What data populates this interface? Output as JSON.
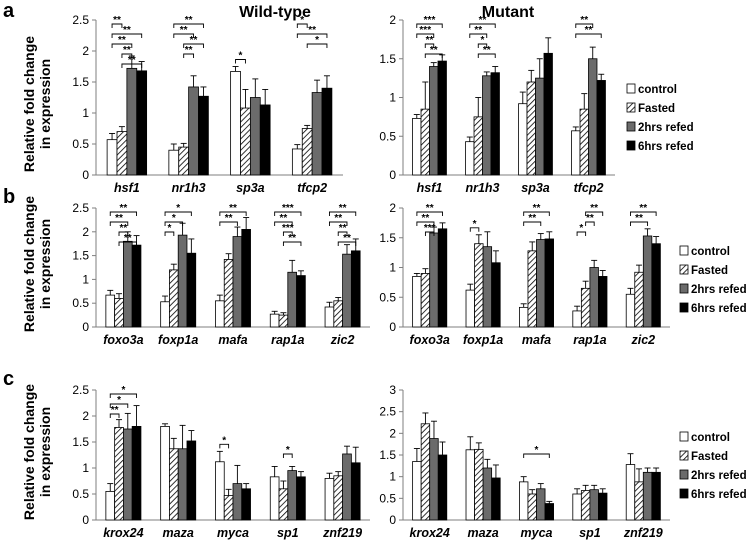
{
  "panel_titles": [
    "Wild-type",
    "Mutant"
  ],
  "row_labels": [
    "a",
    "b",
    "c"
  ],
  "ylabel_line1": "Relative fold change",
  "ylabel_line2": "in expression",
  "legend": [
    "control",
    "Fasted",
    "2hrs refed",
    "6hrs refed"
  ],
  "colors": {
    "control": "#ffffff",
    "fasted": "hatch",
    "refed2": "#6b6b6b",
    "refed6": "#000000",
    "axis": "#7f7f7f"
  },
  "chart_data": [
    {
      "id": "a-wt",
      "type": "bar",
      "title": "Wild-type",
      "ylim": [
        0,
        2.5
      ],
      "yticks": [
        "0",
        "0.5",
        "1",
        "1.5",
        "2",
        "2.5"
      ],
      "categories": [
        "hsf1",
        "nr1h3",
        "sp3a",
        "tfcp2"
      ],
      "series": [
        {
          "name": "control",
          "values": [
            0.57,
            0.4,
            1.67,
            0.42
          ],
          "errors": [
            0.1,
            0.1,
            0.08,
            0.07
          ]
        },
        {
          "name": "Fasted",
          "values": [
            0.7,
            0.45,
            1.08,
            0.75
          ],
          "errors": [
            0.08,
            0.06,
            0.3,
            0.05
          ]
        },
        {
          "name": "2hrs refed",
          "values": [
            1.72,
            1.42,
            1.25,
            1.33
          ],
          "errors": [
            0.2,
            0.18,
            0.3,
            0.2
          ]
        },
        {
          "name": "6hrs refed",
          "values": [
            1.68,
            1.27,
            1.13,
            1.4
          ],
          "errors": [
            0.15,
            0.15,
            0.25,
            0.2
          ]
        }
      ],
      "annotations": [
        {
          "cat": 0,
          "from": 0,
          "to": 1,
          "label": "**"
        },
        {
          "cat": 0,
          "from": 0,
          "to": 3,
          "label": "**"
        },
        {
          "cat": 0,
          "from": 0,
          "to": 2,
          "label": "**"
        },
        {
          "cat": 0,
          "from": 1,
          "to": 2,
          "label": "**"
        },
        {
          "cat": 0,
          "from": 1,
          "to": 3,
          "label": "**"
        },
        {
          "cat": 1,
          "from": 0,
          "to": 3,
          "label": "**"
        },
        {
          "cat": 1,
          "from": 0,
          "to": 2,
          "label": "**"
        },
        {
          "cat": 1,
          "from": 1,
          "to": 3,
          "label": "**"
        },
        {
          "cat": 1,
          "from": 1,
          "to": 2,
          "label": "**"
        },
        {
          "cat": 2,
          "from": 0,
          "to": 1,
          "label": "*"
        },
        {
          "cat": 3,
          "from": 0,
          "to": 1,
          "label": "*"
        },
        {
          "cat": 3,
          "from": 0,
          "to": 3,
          "label": "**"
        },
        {
          "cat": 3,
          "from": 1,
          "to": 3,
          "label": "*"
        }
      ]
    },
    {
      "id": "a-mut",
      "type": "bar",
      "title": "Mutant",
      "ylim": [
        0,
        2
      ],
      "yticks": [
        "0",
        "0.5",
        "1",
        "1.5",
        "2"
      ],
      "categories": [
        "hsf1",
        "nr1h3",
        "sp3a",
        "tfcp2"
      ],
      "series": [
        {
          "name": "control",
          "values": [
            0.73,
            0.43,
            0.92,
            0.57
          ],
          "errors": [
            0.05,
            0.06,
            0.15,
            0.05
          ]
        },
        {
          "name": "Fasted",
          "values": [
            0.85,
            0.75,
            1.2,
            0.85
          ],
          "errors": [
            0.35,
            0.25,
            0.15,
            0.2
          ]
        },
        {
          "name": "2hrs refed",
          "values": [
            1.4,
            1.28,
            1.25,
            1.5
          ],
          "errors": [
            0.05,
            0.05,
            0.25,
            0.15
          ]
        },
        {
          "name": "6hrs refed",
          "values": [
            1.47,
            1.32,
            1.57,
            1.22
          ],
          "errors": [
            0.08,
            0.08,
            0.2,
            0.08
          ]
        }
      ],
      "annotations": [
        {
          "cat": 0,
          "from": 0,
          "to": 3,
          "label": "***"
        },
        {
          "cat": 0,
          "from": 0,
          "to": 2,
          "label": "***"
        },
        {
          "cat": 0,
          "from": 1,
          "to": 2,
          "label": "**"
        },
        {
          "cat": 0,
          "from": 1,
          "to": 3,
          "label": "**"
        },
        {
          "cat": 1,
          "from": 0,
          "to": 3,
          "label": "**"
        },
        {
          "cat": 1,
          "from": 0,
          "to": 2,
          "label": "**"
        },
        {
          "cat": 1,
          "from": 1,
          "to": 2,
          "label": "*"
        },
        {
          "cat": 1,
          "from": 1,
          "to": 3,
          "label": "**"
        },
        {
          "cat": 3,
          "from": 0,
          "to": 2,
          "label": "**"
        },
        {
          "cat": 3,
          "from": 0,
          "to": 3,
          "label": "**"
        }
      ]
    },
    {
      "id": "b-wt",
      "type": "bar",
      "ylim": [
        0,
        2.5
      ],
      "yticks": [
        "0",
        "0.5",
        "1",
        "1.5",
        "2",
        "2.5"
      ],
      "categories": [
        "foxo3a",
        "foxp1a",
        "mafa",
        "rap1a",
        "zic2"
      ],
      "series": [
        {
          "name": "control",
          "values": [
            0.67,
            0.53,
            0.55,
            0.27,
            0.42
          ],
          "errors": [
            0.1,
            0.12,
            0.12,
            0.06,
            0.1
          ]
        },
        {
          "name": "Fasted",
          "values": [
            0.6,
            1.2,
            1.42,
            0.25,
            0.55
          ],
          "errors": [
            0.1,
            0.12,
            0.12,
            0.05,
            0.07
          ]
        },
        {
          "name": "2hrs refed",
          "values": [
            1.8,
            1.93,
            1.9,
            1.15,
            1.53
          ],
          "errors": [
            0.2,
            0.25,
            0.2,
            0.25,
            0.2
          ]
        },
        {
          "name": "6hrs refed",
          "values": [
            1.72,
            1.55,
            2.05,
            1.08,
            1.6
          ],
          "errors": [
            0.2,
            0.3,
            0.25,
            0.1,
            0.25
          ]
        }
      ],
      "annotations": [
        {
          "cat": 0,
          "from": 0,
          "to": 3,
          "label": "**"
        },
        {
          "cat": 0,
          "from": 0,
          "to": 2,
          "label": "**"
        },
        {
          "cat": 0,
          "from": 1,
          "to": 2,
          "label": "**"
        },
        {
          "cat": 0,
          "from": 1,
          "to": 3,
          "label": "**"
        },
        {
          "cat": 1,
          "from": 0,
          "to": 3,
          "label": "*"
        },
        {
          "cat": 1,
          "from": 0,
          "to": 2,
          "label": "*"
        },
        {
          "cat": 1,
          "from": 0,
          "to": 1,
          "label": "*"
        },
        {
          "cat": 2,
          "from": 0,
          "to": 3,
          "label": "**"
        },
        {
          "cat": 2,
          "from": 0,
          "to": 2,
          "label": "**"
        },
        {
          "cat": 3,
          "from": 0,
          "to": 3,
          "label": "***"
        },
        {
          "cat": 3,
          "from": 0,
          "to": 2,
          "label": "**"
        },
        {
          "cat": 3,
          "from": 1,
          "to": 2,
          "label": "***"
        },
        {
          "cat": 3,
          "from": 1,
          "to": 3,
          "label": "**"
        },
        {
          "cat": 4,
          "from": 0,
          "to": 3,
          "label": "**"
        },
        {
          "cat": 4,
          "from": 0,
          "to": 2,
          "label": "**"
        },
        {
          "cat": 4,
          "from": 1,
          "to": 2,
          "label": "**"
        },
        {
          "cat": 4,
          "from": 1,
          "to": 3,
          "label": "**"
        }
      ]
    },
    {
      "id": "b-mut",
      "type": "bar",
      "ylim": [
        0,
        2
      ],
      "yticks": [
        "0",
        "0.5",
        "1",
        "1.5",
        "2"
      ],
      "categories": [
        "foxo3a",
        "foxp1a",
        "mafa",
        "rap1a",
        "zic2"
      ],
      "series": [
        {
          "name": "control",
          "values": [
            0.85,
            0.62,
            0.33,
            0.27,
            0.55
          ],
          "errors": [
            0.05,
            0.1,
            0.06,
            0.08,
            0.1
          ]
        },
        {
          "name": "Fasted",
          "values": [
            0.9,
            1.4,
            1.28,
            0.65,
            0.92
          ],
          "errors": [
            0.08,
            0.15,
            0.15,
            0.12,
            0.12
          ]
        },
        {
          "name": "2hrs refed",
          "values": [
            1.58,
            1.35,
            1.47,
            1.0,
            1.53
          ],
          "errors": [
            0.1,
            0.25,
            0.1,
            0.12,
            0.12
          ]
        },
        {
          "name": "6hrs refed",
          "values": [
            1.65,
            1.08,
            1.48,
            0.85,
            1.4
          ],
          "errors": [
            0.1,
            0.2,
            0.12,
            0.1,
            0.12
          ]
        }
      ],
      "annotations": [
        {
          "cat": 0,
          "from": 0,
          "to": 3,
          "label": "**"
        },
        {
          "cat": 0,
          "from": 0,
          "to": 2,
          "label": "**"
        },
        {
          "cat": 0,
          "from": 1,
          "to": 2,
          "label": "***"
        },
        {
          "cat": 1,
          "from": 0,
          "to": 1,
          "label": "*"
        },
        {
          "cat": 2,
          "from": 0,
          "to": 3,
          "label": "**"
        },
        {
          "cat": 2,
          "from": 0,
          "to": 2,
          "label": "**"
        },
        {
          "cat": 3,
          "from": 1,
          "to": 3,
          "label": "**"
        },
        {
          "cat": 3,
          "from": 1,
          "to": 2,
          "label": "**"
        },
        {
          "cat": 3,
          "from": 0,
          "to": 1,
          "label": "*"
        },
        {
          "cat": 4,
          "from": 0,
          "to": 3,
          "label": "**"
        },
        {
          "cat": 4,
          "from": 0,
          "to": 2,
          "label": "**"
        }
      ]
    },
    {
      "id": "c-wt",
      "type": "bar",
      "ylim": [
        0,
        2.5
      ],
      "yticks": [
        "0",
        "0.5",
        "1",
        "1.5",
        "2",
        "2.5"
      ],
      "categories": [
        "krox24",
        "maza",
        "myca",
        "sp1",
        "znf219"
      ],
      "series": [
        {
          "name": "control",
          "values": [
            0.55,
            1.8,
            1.12,
            0.83,
            0.8
          ],
          "errors": [
            0.15,
            0.05,
            0.2,
            0.2,
            0.1
          ]
        },
        {
          "name": "Fasted",
          "values": [
            1.78,
            1.37,
            0.47,
            0.6,
            0.85
          ],
          "errors": [
            0.15,
            0.2,
            0.12,
            0.15,
            0.08
          ]
        },
        {
          "name": "2hrs refed",
          "values": [
            1.75,
            1.37,
            0.7,
            0.95,
            1.27
          ],
          "errors": [
            0.3,
            0.45,
            0.35,
            0.08,
            0.15
          ]
        },
        {
          "name": "6hrs refed",
          "values": [
            1.8,
            1.52,
            0.6,
            0.83,
            1.1
          ],
          "errors": [
            0.4,
            0.2,
            0.1,
            0.1,
            0.3
          ]
        }
      ],
      "annotations": [
        {
          "cat": 0,
          "from": 0,
          "to": 3,
          "label": "*"
        },
        {
          "cat": 0,
          "from": 0,
          "to": 2,
          "label": "*"
        },
        {
          "cat": 0,
          "from": 0,
          "to": 1,
          "label": "**"
        },
        {
          "cat": 2,
          "from": 0,
          "to": 1,
          "label": "*"
        },
        {
          "cat": 3,
          "from": 1,
          "to": 2,
          "label": "*"
        }
      ]
    },
    {
      "id": "c-mut",
      "type": "bar",
      "ylim": [
        0,
        3
      ],
      "yticks": [
        "0",
        "0.5",
        "1",
        "1.5",
        "2",
        "2.5",
        "3"
      ],
      "categories": [
        "krox24",
        "maza",
        "myca",
        "sp1",
        "znf219"
      ],
      "series": [
        {
          "name": "control",
          "values": [
            1.35,
            1.62,
            0.88,
            0.6,
            1.28
          ],
          "errors": [
            0.3,
            0.3,
            0.12,
            0.12,
            0.25
          ]
        },
        {
          "name": "Fasted",
          "values": [
            2.22,
            1.63,
            0.6,
            0.68,
            0.88
          ],
          "errors": [
            0.25,
            0.15,
            0.1,
            0.12,
            0.3
          ]
        },
        {
          "name": "2hrs refed",
          "values": [
            1.88,
            1.2,
            0.72,
            0.7,
            1.1
          ],
          "errors": [
            0.4,
            0.2,
            0.12,
            0.1,
            0.1
          ]
        },
        {
          "name": "6hrs refed",
          "values": [
            1.5,
            0.97,
            0.38,
            0.62,
            1.1
          ],
          "errors": [
            0.3,
            0.3,
            0.05,
            0.1,
            0.1
          ]
        }
      ],
      "annotations": [
        {
          "cat": 2,
          "from": 0,
          "to": 3,
          "label": "*"
        }
      ]
    }
  ]
}
